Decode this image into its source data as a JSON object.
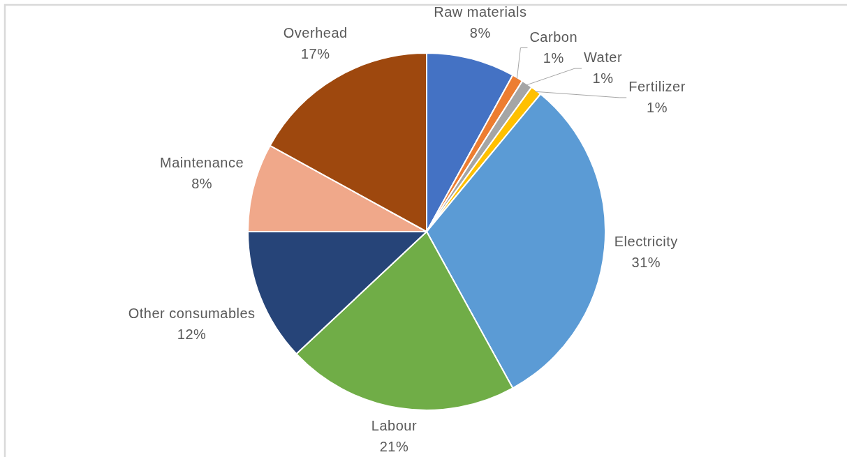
{
  "chart_data": {
    "type": "pie",
    "categories": [
      "Raw materials",
      "Carbon",
      "Water",
      "Fertilizer",
      "Electricity",
      "Labour",
      "Other consumables",
      "Maintenance",
      "Overhead"
    ],
    "values": [
      8,
      1,
      1,
      1,
      31,
      21,
      12,
      8,
      17
    ],
    "colors": [
      "#4472c4",
      "#ed7d31",
      "#a5a5a5",
      "#ffc000",
      "#5b9bd5",
      "#70ad47",
      "#264478",
      "#f0a88a",
      "#9e480e"
    ],
    "value_labels": [
      "8%",
      "1%",
      "1%",
      "1%",
      "31%",
      "21%",
      "12%",
      "8%",
      "17%"
    ]
  }
}
